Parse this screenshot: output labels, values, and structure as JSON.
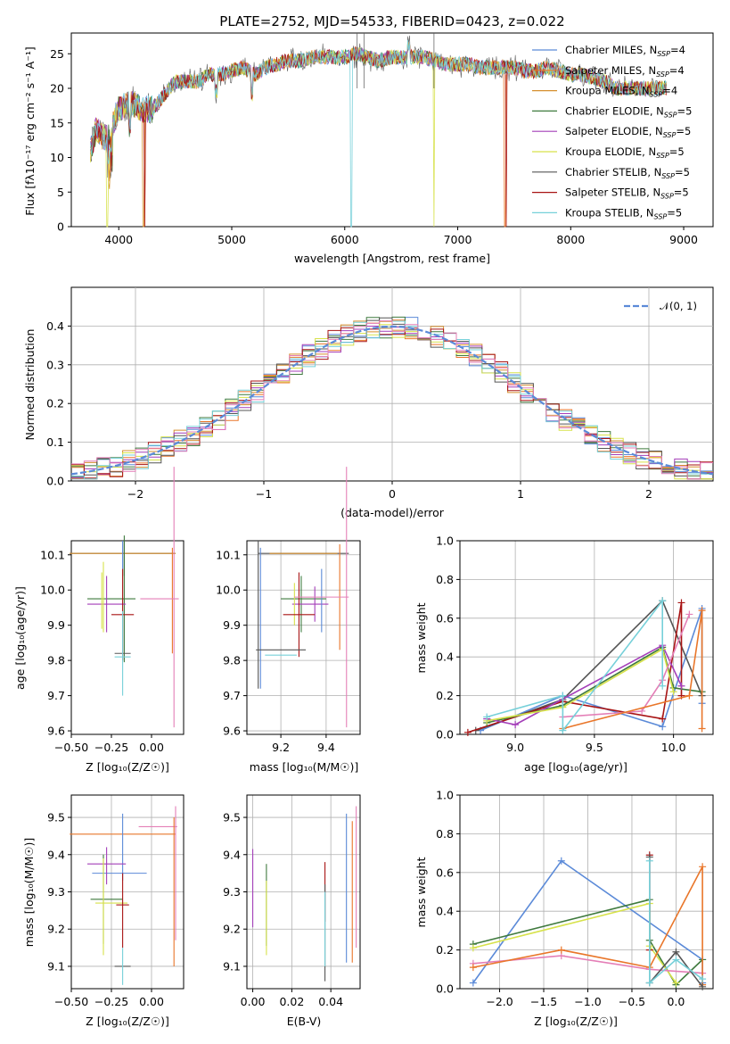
{
  "title": "PLATE=2752, MJD=54533, FIBERID=0423, z=0.022",
  "colors": {
    "c0": "#5b8ad8",
    "c1": "#e9762a",
    "c2": "#d58f2f",
    "c3": "#3f7a3e",
    "c4": "#a43fb9",
    "c5": "#d7e24b",
    "c6": "#555555",
    "c7": "#a81414",
    "c8": "#76d0d9",
    "c9": "#e47fb7"
  },
  "panels": {
    "spectrum": {
      "xlabel": "wavelength [Angstrom, rest frame]",
      "ylabel": "Flux [fλ10⁻¹⁷ erg cm⁻² s⁻¹ A⁻¹]",
      "xticks": [
        "4000",
        "5000",
        "6000",
        "7000",
        "8000",
        "9000"
      ],
      "yticks": [
        "0",
        "5",
        "10",
        "15",
        "20",
        "25"
      ],
      "legend": [
        "Chabrier MILES, N_SSP=4",
        "Salpeter MILES, N_SSP=4",
        "Kroupa MILES, N_SSP=4",
        "Chabrier ELODIE, N_SSP=5",
        "Salpeter ELODIE, N_SSP=5",
        "Kroupa ELODIE, N_SSP=5",
        "Chabrier STELIB, N_SSP=5",
        "Salpeter STELIB, N_SSP=5",
        "Kroupa STELIB, N_SSP=5"
      ]
    },
    "residuals": {
      "xlabel": "(data-model)/error",
      "ylabel": "Normed distribution",
      "legend": "𝒩(0, 1)",
      "xticks": [
        "−2",
        "−1",
        "0",
        "1",
        "2"
      ],
      "yticks": [
        "0.0",
        "0.1",
        "0.2",
        "0.3",
        "0.4"
      ]
    },
    "age_z": {
      "xlabel": "Z [log₁₀(Z/Z☉)]",
      "ylabel": "age  [log₁₀(age/yr)]",
      "xticks": [
        "−0.50",
        "−0.25",
        "0.00"
      ],
      "yticks": [
        "9.6",
        "9.7",
        "9.8",
        "9.9",
        "10.0",
        "10.1"
      ]
    },
    "age_mass": {
      "xlabel": "mass [log₁₀(M/M☉)]",
      "xticks": [
        "9.2",
        "9.4"
      ],
      "yticks": [
        "9.6",
        "9.7",
        "9.8",
        "9.9",
        "10.0",
        "10.1"
      ]
    },
    "mw_age": {
      "xlabel": "age  [log₁₀(age/yr)]",
      "ylabel": "mass weight",
      "xticks": [
        "9.0",
        "9.5",
        "10.0"
      ],
      "yticks": [
        "0.0",
        "0.2",
        "0.4",
        "0.6",
        "0.8",
        "1.0"
      ]
    },
    "mass_z": {
      "xlabel": "Z [log₁₀(Z/Z☉)]",
      "ylabel": "mass [log₁₀(M/M☉)]",
      "xticks": [
        "−0.50",
        "−0.25",
        "0.00"
      ],
      "yticks": [
        "9.1",
        "9.2",
        "9.3",
        "9.4",
        "9.5"
      ]
    },
    "mass_ebv": {
      "xlabel": "E(B-V)",
      "xticks": [
        "0.00",
        "0.02",
        "0.04"
      ],
      "yticks": [
        "9.1",
        "9.2",
        "9.3",
        "9.4",
        "9.5"
      ]
    },
    "mw_z": {
      "xlabel": "Z [log₁₀(Z/Z☉)]",
      "ylabel": "mass weight",
      "xticks": [
        "−2.0",
        "−1.5",
        "−1.0",
        "−0.5",
        "0.0"
      ],
      "yticks": [
        "0.0",
        "0.2",
        "0.4",
        "0.6",
        "0.8",
        "1.0"
      ]
    }
  },
  "chart_data": [
    {
      "type": "line",
      "title": "PLATE=2752, MJD=54533, FIBERID=0423, z=0.022",
      "xlabel": "wavelength [Angstrom, rest frame]",
      "ylabel": "Flux [fλ10⁻¹⁷ erg cm⁻² s⁻¹ A⁻¹]",
      "xlim": [
        3580,
        9260
      ],
      "ylim": [
        0,
        28
      ],
      "grid": false,
      "legend_position": "top-right",
      "x": [
        3750,
        3800,
        3850,
        3900,
        4000,
        4100,
        4200,
        4300,
        4400,
        4500,
        4600,
        4700,
        4800,
        4900,
        5000,
        5100,
        5200,
        5300,
        5400,
        5500,
        5600,
        5700,
        5800,
        5900,
        6000,
        6100,
        6200,
        6300,
        6400,
        6500,
        6600,
        6700,
        6800,
        6900,
        7000,
        7100,
        7200,
        7300,
        7400,
        7500,
        7600,
        7700,
        7800,
        7900,
        8000,
        8100,
        8200,
        8300,
        8400,
        8500,
        8600,
        8700,
        8800
      ],
      "series": [
        {
          "name": "Kroupa STELIB, N_SSP=5",
          "values": [
            11,
            14,
            13,
            13,
            17,
            18,
            17,
            17,
            19,
            21,
            21,
            21,
            22,
            22,
            22.5,
            23,
            22,
            23,
            23.5,
            24,
            24,
            24.5,
            24.5,
            24.5,
            24.5,
            25,
            24.5,
            24,
            24.5,
            24.5,
            24.5,
            24.5,
            24,
            23.5,
            23.5,
            23.5,
            23,
            23,
            23,
            23,
            22.5,
            22.5,
            23,
            22.5,
            22,
            22,
            21.5,
            21,
            20,
            20,
            20,
            20,
            20
          ]
        }
      ]
    },
    {
      "type": "bar",
      "xlabel": "(data-model)/error",
      "ylabel": "Normed distribution",
      "xlim": [
        -2.5,
        2.5
      ],
      "ylim": [
        0,
        0.5
      ],
      "grid": true,
      "series": [
        {
          "name": "𝒩(0, 1)",
          "x": [
            -2.5,
            -2.0,
            -1.5,
            -1.0,
            -0.5,
            0,
            0.5,
            1.0,
            1.5,
            2.0,
            2.5
          ],
          "values": [
            0.018,
            0.054,
            0.13,
            0.242,
            0.352,
            0.399,
            0.352,
            0.242,
            0.13,
            0.054,
            0.018
          ]
        }
      ]
    },
    {
      "type": "scatter",
      "xlabel": "Z [log₁₀(Z/Z☉)]",
      "ylabel": "age  [log₁₀(age/yr)]",
      "xlim": [
        -0.5,
        0.2
      ],
      "ylim": [
        9.59,
        10.14
      ],
      "points": [
        {
          "x": -0.18,
          "y": 10.1,
          "xerr": 0.33,
          "yerr": 0.03
        },
        {
          "x": -0.2,
          "y": 9.975,
          "xerr": 0.15,
          "yerr": 0.1
        },
        {
          "x": -0.18,
          "y": 9.93,
          "xerr": 0.07,
          "yerr": 0.2
        },
        {
          "x": -0.18,
          "y": 9.82,
          "xerr": 0.05,
          "yerr": 0.1
        },
        {
          "x": 0.14,
          "y": 9.98,
          "xerr": 0.05,
          "yerr": 0.38
        }
      ]
    },
    {
      "type": "scatter",
      "xlabel": "mass [log₁₀(M/M☉)]",
      "xlim": [
        9.05,
        9.55
      ],
      "ylim": [
        9.59,
        10.14
      ],
      "points": [
        {
          "x": 9.3,
          "y": 10.1,
          "yerr": 0.03
        },
        {
          "x": 9.27,
          "y": 9.93,
          "xerr": 0.07,
          "yerr": 0.12
        },
        {
          "x": 9.27,
          "y": 9.975,
          "xerr": 0.15
        },
        {
          "x": 9.47,
          "y": 9.98,
          "yerr": 0.38
        }
      ]
    },
    {
      "type": "line",
      "xlabel": "age  [log₁₀(age/yr)]",
      "ylabel": "mass weight",
      "xlim": [
        8.65,
        10.25
      ],
      "ylim": [
        0,
        1
      ],
      "grid": true,
      "series": [
        {
          "x": [
            8.78,
            9.3,
            9.93,
            10.18,
            10.18
          ],
          "values": [
            0.02,
            0.2,
            0.04,
            0.65,
            0.16
          ]
        },
        {
          "x": [
            8.7,
            9.3,
            9.93,
            10.05,
            10.18
          ],
          "values": [
            0.01,
            0.17,
            0.69,
            0.2,
            0.64
          ]
        },
        {
          "x": [
            8.82,
            9.2,
            9.93,
            10.0,
            10.18
          ],
          "values": [
            0.08,
            0.1,
            0.45,
            0.24,
            0.23
          ]
        }
      ]
    },
    {
      "type": "scatter",
      "xlabel": "Z [log₁₀(Z/Z☉)]",
      "ylabel": "mass [log₁₀(M/M☉)]",
      "xlim": [
        -0.5,
        0.2
      ],
      "ylim": [
        9.04,
        9.56
      ],
      "points": [
        {
          "x": -0.18,
          "y": 9.45,
          "xerr": 0.33
        },
        {
          "x": -0.2,
          "y": 9.35,
          "xerr": 0.17
        },
        {
          "x": -0.22,
          "y": 9.28,
          "xerr": 0.15,
          "yerr": 0.12
        },
        {
          "x": -0.18,
          "y": 9.1,
          "xerr": 0.07
        },
        {
          "x": 0.14,
          "y": 9.3,
          "yerr": 0.2
        }
      ]
    },
    {
      "type": "scatter",
      "xlabel": "E(B-V)",
      "xlim": [
        -0.003,
        0.055
      ],
      "ylim": [
        9.04,
        9.56
      ],
      "points": [
        {
          "x": 0.0,
          "y": 9.31,
          "yerr": 0.1
        },
        {
          "x": 0.007,
          "y": 9.25,
          "yerr": 0.12
        },
        {
          "x": 0.037,
          "y": 9.23,
          "yerr": 0.15
        },
        {
          "x": 0.048,
          "y": 9.3,
          "yerr": 0.2
        },
        {
          "x": 0.052,
          "y": 9.34,
          "yerr": 0.2
        }
      ]
    },
    {
      "type": "line",
      "xlabel": "Z [log₁₀(Z/Z☉)]",
      "ylabel": "mass weight",
      "xlim": [
        -2.45,
        0.42
      ],
      "ylim": [
        0,
        1
      ],
      "grid": true,
      "series": [
        {
          "x": [
            -2.3,
            -1.3,
            0.3,
            0.3
          ],
          "values": [
            0.03,
            0.66,
            0.15,
            0.05
          ]
        },
        {
          "x": [
            -2.3,
            -1.3,
            -0.3,
            0.3,
            0.3
          ],
          "values": [
            0.11,
            0.2,
            0.1,
            0.63,
            0.02
          ]
        },
        {
          "x": [
            -2.3,
            -0.3,
            0.0,
            0.3
          ],
          "values": [
            0.23,
            0.46,
            0.02,
            0.15
          ]
        }
      ]
    }
  ]
}
